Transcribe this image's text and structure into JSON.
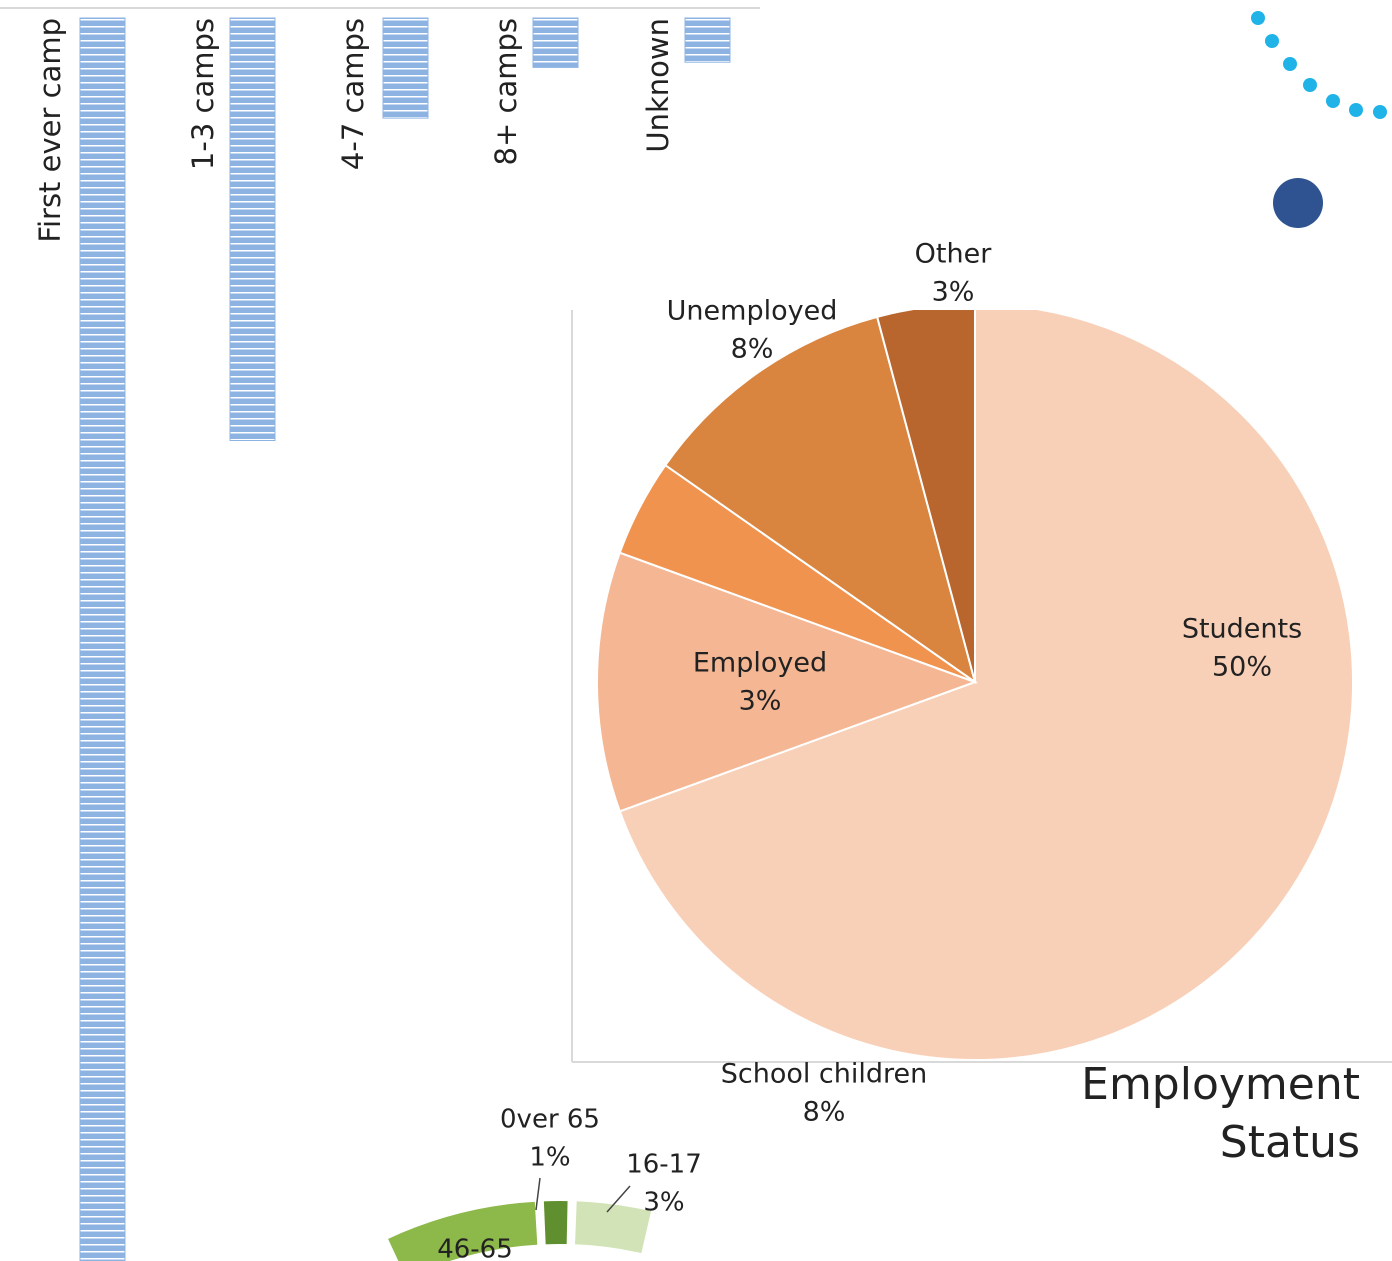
{
  "chart_data": [
    {
      "type": "bar",
      "orientation": "hanging",
      "categories": [
        "First ever camp",
        "1-3 camps",
        "4-7 camps",
        "8+ camps",
        "Unknown"
      ],
      "values": [
        100,
        32.5,
        7.7,
        3.8,
        3.4
      ],
      "color": "#8db3e2"
    },
    {
      "type": "pie",
      "title": "Employment Status",
      "categories": [
        "Students",
        "School children",
        "Employed",
        "Unemployed",
        "Other"
      ],
      "values": [
        50,
        8,
        3,
        8,
        3
      ],
      "value_labels": [
        "50%",
        "8%",
        "3%",
        "8%",
        "3%"
      ],
      "colors": [
        "#f8d0b8",
        "#f4b693",
        "#f0934f",
        "#d9853f",
        "#b8652e"
      ]
    },
    {
      "type": "donut",
      "categories": [
        "46-65",
        "0ver 65",
        "16-17"
      ],
      "values": [
        6,
        1,
        3
      ],
      "value_labels": [
        null,
        "1%",
        "3%"
      ],
      "colors": [
        "#8db84a",
        "#5f8f2e",
        "#d3e3b8"
      ]
    }
  ]
}
